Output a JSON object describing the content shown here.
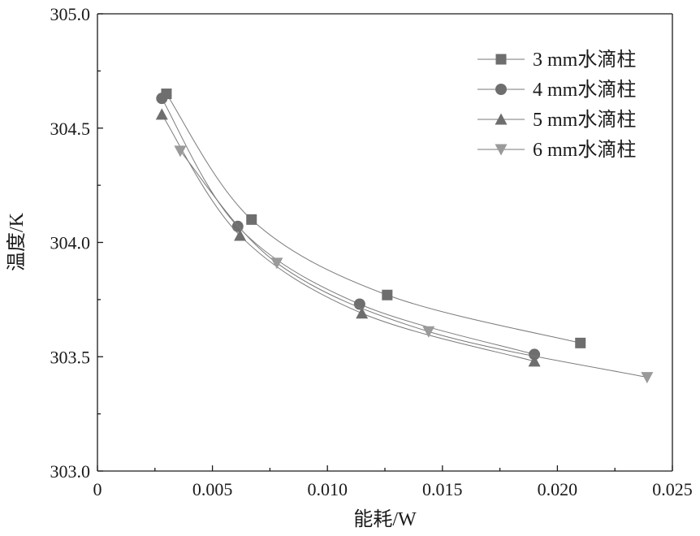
{
  "chart_data": {
    "type": "line",
    "xlabel": "能耗/W",
    "ylabel": "温度/K",
    "xlim": [
      0,
      0.025
    ],
    "ylim": [
      303.0,
      305.0
    ],
    "xticks": [
      0,
      0.005,
      0.01,
      0.015,
      0.02,
      0.025
    ],
    "xtick_labels": [
      "0",
      "0.005",
      "0.010",
      "0.015",
      "0.020",
      "0.025"
    ],
    "yticks": [
      303.0,
      303.5,
      304.0,
      304.5,
      305.0
    ],
    "ytick_labels": [
      "303.0",
      "303.5",
      "304.0",
      "304.5",
      "305.0"
    ],
    "grid": false,
    "legend_position": "top-right",
    "series": [
      {
        "name": "3 mm水滴柱",
        "marker": "square",
        "color": "#6e6e6e",
        "x": [
          0.003,
          0.0067,
          0.0126,
          0.021
        ],
        "y": [
          304.65,
          304.1,
          303.77,
          303.56
        ]
      },
      {
        "name": "4 mm水滴柱",
        "marker": "circle",
        "color": "#6e6e6e",
        "x": [
          0.0028,
          0.0061,
          0.0114,
          0.019
        ],
        "y": [
          304.63,
          304.07,
          303.73,
          303.51
        ]
      },
      {
        "name": "5 mm水滴柱",
        "marker": "triangle-up",
        "color": "#6e6e6e",
        "x": [
          0.0028,
          0.0062,
          0.0115,
          0.019
        ],
        "y": [
          304.56,
          304.03,
          303.69,
          303.48
        ]
      },
      {
        "name": "6 mm水滴柱",
        "marker": "triangle-down",
        "color": "#9a9a9a",
        "x": [
          0.0036,
          0.0078,
          0.0144,
          0.0239
        ],
        "y": [
          304.4,
          303.91,
          303.61,
          303.41
        ]
      }
    ]
  }
}
